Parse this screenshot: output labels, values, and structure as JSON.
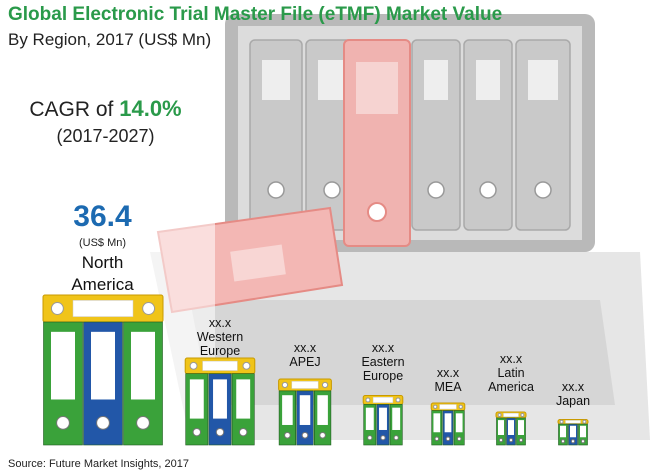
{
  "chart_data": {
    "type": "bar",
    "title": "Global Electronic Trial Master File (eTMF) Market Value",
    "subtitle": "By Region, 2017 (US$ Mn)",
    "categories": [
      "North America",
      "Western Europe",
      "APEJ",
      "Eastern Europe",
      "MEA",
      "Latin America",
      "Japan"
    ],
    "value_labels": [
      "36.4",
      "xx.x",
      "xx.x",
      "xx.x",
      "xx.x",
      "xx.x",
      "xx.x"
    ],
    "values": [
      36.4,
      null,
      null,
      null,
      null,
      null,
      null
    ],
    "relative_size": [
      1.0,
      0.58,
      0.44,
      0.33,
      0.28,
      0.22,
      0.17
    ],
    "unit_label": "(US$ Mn)",
    "colors": {
      "title": "#2a9a4a",
      "highlight_value": "#1c6ab1",
      "binder_green": "#3aa23a",
      "binder_blue": "#2257a8",
      "binder_top": "#f0c419"
    }
  },
  "cagr": {
    "prefix": "CAGR of",
    "value": "14.0%",
    "period": "(2017-2027)"
  },
  "north_america": {
    "value": "36.4",
    "unit": "(US$ Mn)",
    "name_line1": "North",
    "name_line2": "America"
  },
  "region_labels": [
    {
      "value": "xx.x",
      "line1": "Western",
      "line2": "Europe"
    },
    {
      "value": "xx.x",
      "line1": "APEJ",
      "line2": ""
    },
    {
      "value": "xx.x",
      "line1": "Eastern",
      "line2": "Europe"
    },
    {
      "value": "xx.x",
      "line1": "MEA",
      "line2": ""
    },
    {
      "value": "xx.x",
      "line1": "Latin",
      "line2": "America"
    },
    {
      "value": "xx.x",
      "line1": "Japan",
      "line2": ""
    }
  ],
  "source": "Source: Future Market Insights, 2017"
}
